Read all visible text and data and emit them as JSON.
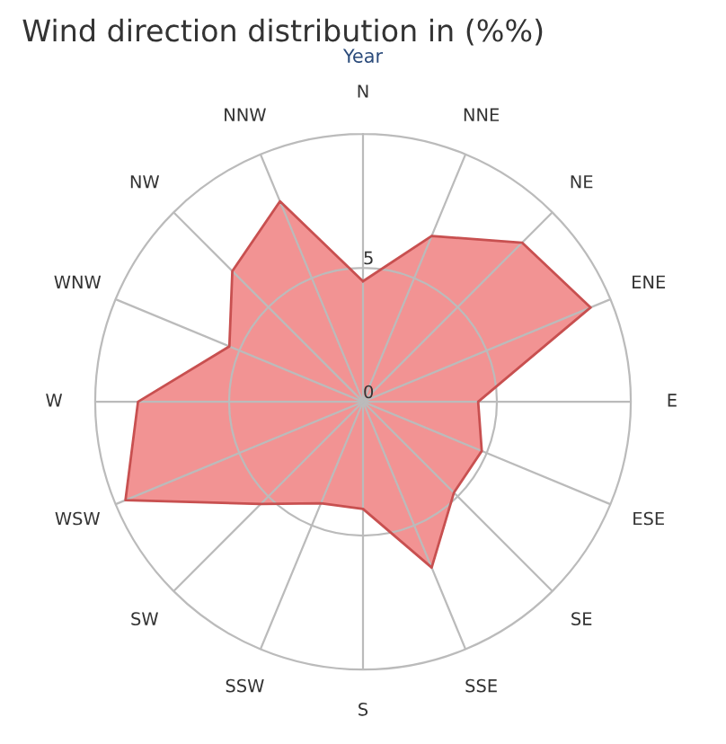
{
  "chart_data": {
    "type": "radar",
    "title": "Wind direction distribution in (%%)",
    "subtitle": "Year",
    "categories": [
      "N",
      "NNE",
      "NE",
      "ENE",
      "E",
      "ESE",
      "SE",
      "SSE",
      "S",
      "SSW",
      "SW",
      "WSW",
      "W",
      "WNW",
      "NW",
      "NNW"
    ],
    "series": [
      {
        "color": "#f08080",
        "values": [
          4.5,
          6.7,
          8.4,
          9.2,
          4.3,
          4.8,
          4.8,
          6.7,
          4.0,
          4.1,
          5.4,
          9.6,
          8.4,
          5.4,
          6.9,
          8.1
        ]
      }
    ],
    "ylim": [
      0,
      10
    ],
    "yticks": [
      0,
      5
    ],
    "grid": true,
    "legend": false,
    "marker": "none"
  }
}
